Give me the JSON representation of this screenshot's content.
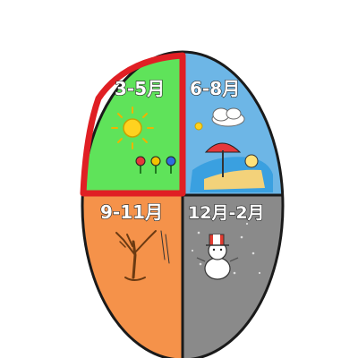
{
  "quadrants": [
    {
      "id": "spring",
      "label": "3-5月",
      "color": "#5fe35a",
      "selected": true,
      "highlight": "#e01f24"
    },
    {
      "id": "summer",
      "label": "6-8月",
      "color": "#6db6e6",
      "selected": false
    },
    {
      "id": "autumn",
      "label": "9-11月",
      "color": "#f5924a",
      "selected": false
    },
    {
      "id": "winter",
      "label": "12月-2月",
      "color": "#8a8a8a",
      "selected": false
    }
  ]
}
